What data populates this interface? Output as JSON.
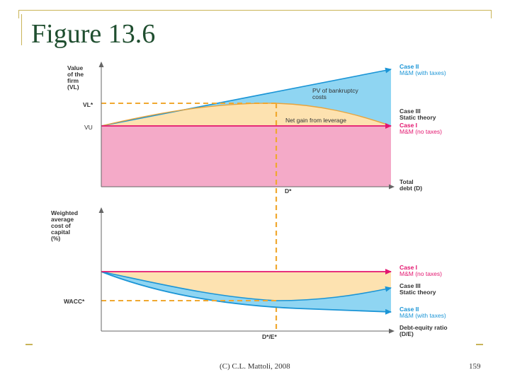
{
  "slide": {
    "title": "Figure 13.6",
    "footer_left": "(C) C.L. Mattoli, 2008",
    "page_number": "159",
    "accent_color": "#c9b458"
  },
  "top_chart": {
    "y_label_lines": [
      "Value",
      "of the",
      "firm",
      "(VL)"
    ],
    "vl_star": "VL*",
    "vu": "VU",
    "x_label_lines": [
      "Total",
      "debt (D)"
    ],
    "d_star": "D*",
    "pv_label_lines": [
      "PV of bankruptcy",
      "costs"
    ],
    "net_gain_label": "Net gain from leverage",
    "case2_lines": [
      "Case II",
      "M&M (with taxes)"
    ],
    "case3_lines": [
      "Case III",
      "Static theory"
    ],
    "case1_lines": [
      "Case I",
      "M&M (no taxes)"
    ]
  },
  "bottom_chart": {
    "y_label_lines": [
      "Weighted",
      "average",
      "cost of",
      "capital",
      "(%)"
    ],
    "wacc_star": "WACC*",
    "x_label_lines": [
      "Debt-equity ratio",
      "(D/E)"
    ],
    "de_star": "D*/E*",
    "case1_lines": [
      "Case I",
      "M&M (no taxes)"
    ],
    "case3_lines": [
      "Case III",
      "Static theory"
    ],
    "case2_lines": [
      "Case II",
      "M&M (with taxes)"
    ]
  },
  "colors": {
    "pink": "#f4aac8",
    "cream": "#fde2b0",
    "blue": "#8fd5f2",
    "magenta": "#e3166f",
    "blue_line": "#1b95d6",
    "dashed": "#f0a830",
    "label_blue": "#1b95d6",
    "label_magenta": "#e3166f"
  }
}
